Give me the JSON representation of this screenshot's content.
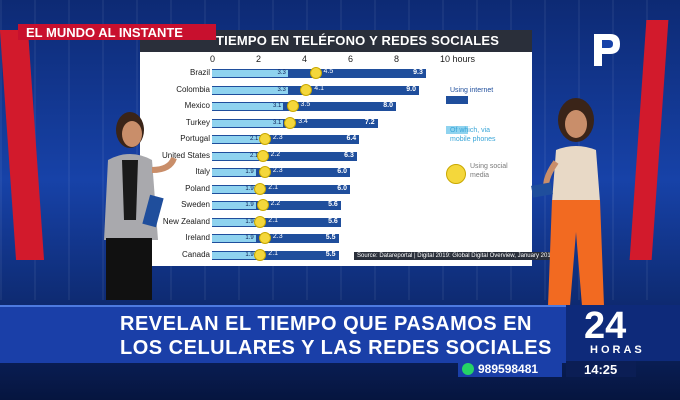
{
  "banner": {
    "label": "EL MUNDO AL INSTANTE"
  },
  "chart": {
    "title": "TIEMPO EN TELÉFONO Y REDES SOCIALES",
    "ticks": [
      "0",
      "2",
      "4",
      "6",
      "8",
      "10 hours"
    ],
    "source": "Source: Datareportal | Digital 2019: Global Digital Overview, January 2019",
    "legend": {
      "internet": "Using internet",
      "mobile": "Of which, via mobile phones",
      "social": "Using social media"
    }
  },
  "chart_data": {
    "type": "bar",
    "title": "TIEMPO EN TELÉFONO Y REDES SOCIALES",
    "xlabel": "hours",
    "xlim": [
      0,
      10
    ],
    "categories": [
      "Brazil",
      "Colombia",
      "Mexico",
      "Turkey",
      "Portugal",
      "United States",
      "Italy",
      "Poland",
      "Sweden",
      "New Zealand",
      "Ireland",
      "Canada"
    ],
    "series": [
      {
        "name": "Using internet",
        "values": [
          9.3,
          9.0,
          8.0,
          7.2,
          6.4,
          6.3,
          6.0,
          6.0,
          5.6,
          5.6,
          5.5,
          5.5
        ]
      },
      {
        "name": "Of which, via mobile phones",
        "values": [
          3.3,
          3.3,
          3.1,
          3.1,
          2.1,
          2.1,
          1.9,
          1.9,
          1.9,
          1.9,
          1.9,
          1.9
        ]
      },
      {
        "name": "Using social media",
        "values": [
          4.5,
          4.1,
          3.5,
          3.4,
          2.3,
          2.2,
          2.3,
          2.1,
          2.2,
          2.1,
          2.3,
          2.1
        ]
      }
    ]
  },
  "headline": {
    "line1": "REVELAN EL TIEMPO QUE PASAMOS EN",
    "line2": "LOS CELULARES Y LAS REDES SOCIALES"
  },
  "channel": {
    "number": "24",
    "sub": "HORAS"
  },
  "contact": {
    "phone": "989598481"
  },
  "clock": {
    "time": "14:25"
  },
  "colors": {
    "internet": "#1f4e9c",
    "mobile": "#8fd3ef",
    "social": "#f4d73b",
    "brand_red": "#c8102e",
    "brand_blue": "#1a3fa8"
  }
}
